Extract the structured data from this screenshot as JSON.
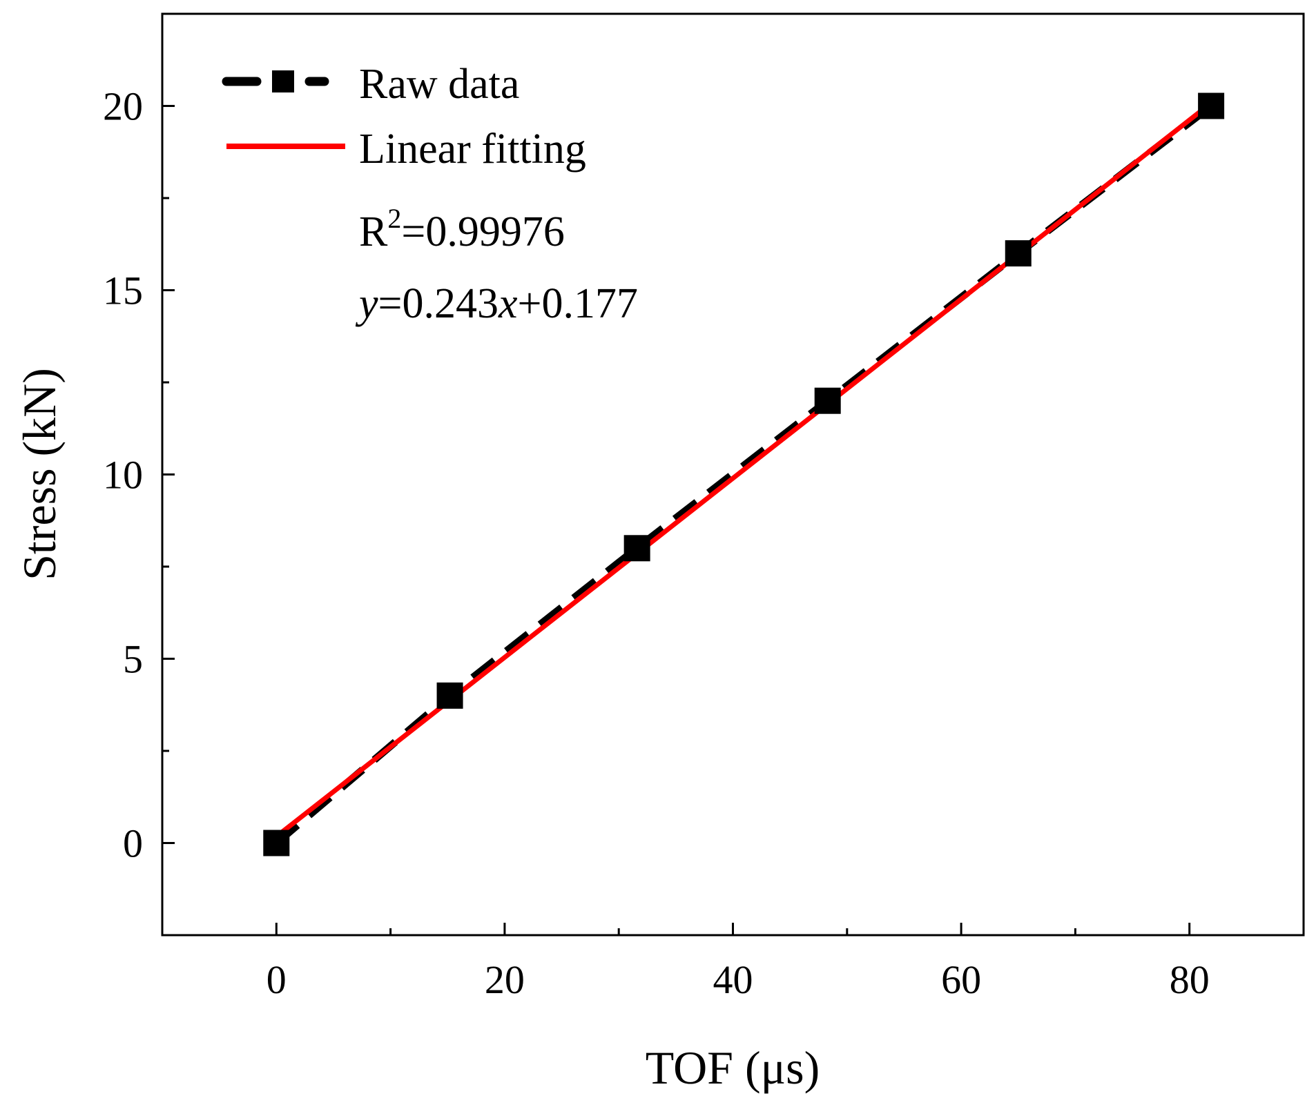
{
  "chart_data": {
    "type": "scatter",
    "title": "",
    "xlabel": "TOF (μs)",
    "ylabel": "Stress (kN)",
    "xlim": [
      -10,
      90
    ],
    "ylim": [
      -2.5,
      22.5
    ],
    "x_ticks": [
      0,
      20,
      40,
      60,
      80
    ],
    "y_ticks": [
      0,
      5,
      10,
      15,
      20
    ],
    "x_minor_step": 10,
    "y_minor_step": 2.5,
    "grid": false,
    "legend_position": "top-left",
    "series": [
      {
        "name": "Raw data",
        "style": "dashed line with square markers",
        "color": "#000000",
        "x": [
          0,
          15.2,
          31.6,
          48.3,
          65,
          81.9
        ],
        "y": [
          0,
          4,
          8,
          12,
          16,
          20
        ]
      },
      {
        "name": "Linear fitting",
        "style": "solid line",
        "color": "#ff0000",
        "slope": 0.243,
        "intercept": 0.177,
        "x_range": [
          0,
          81.9
        ]
      }
    ],
    "annotations": {
      "r2_label": "R",
      "r2_sup": "2",
      "r2_value": "=0.99976",
      "eq_y": "y",
      "eq_mid": "=0.243",
      "eq_x": "x",
      "eq_tail": "+0.177"
    }
  }
}
